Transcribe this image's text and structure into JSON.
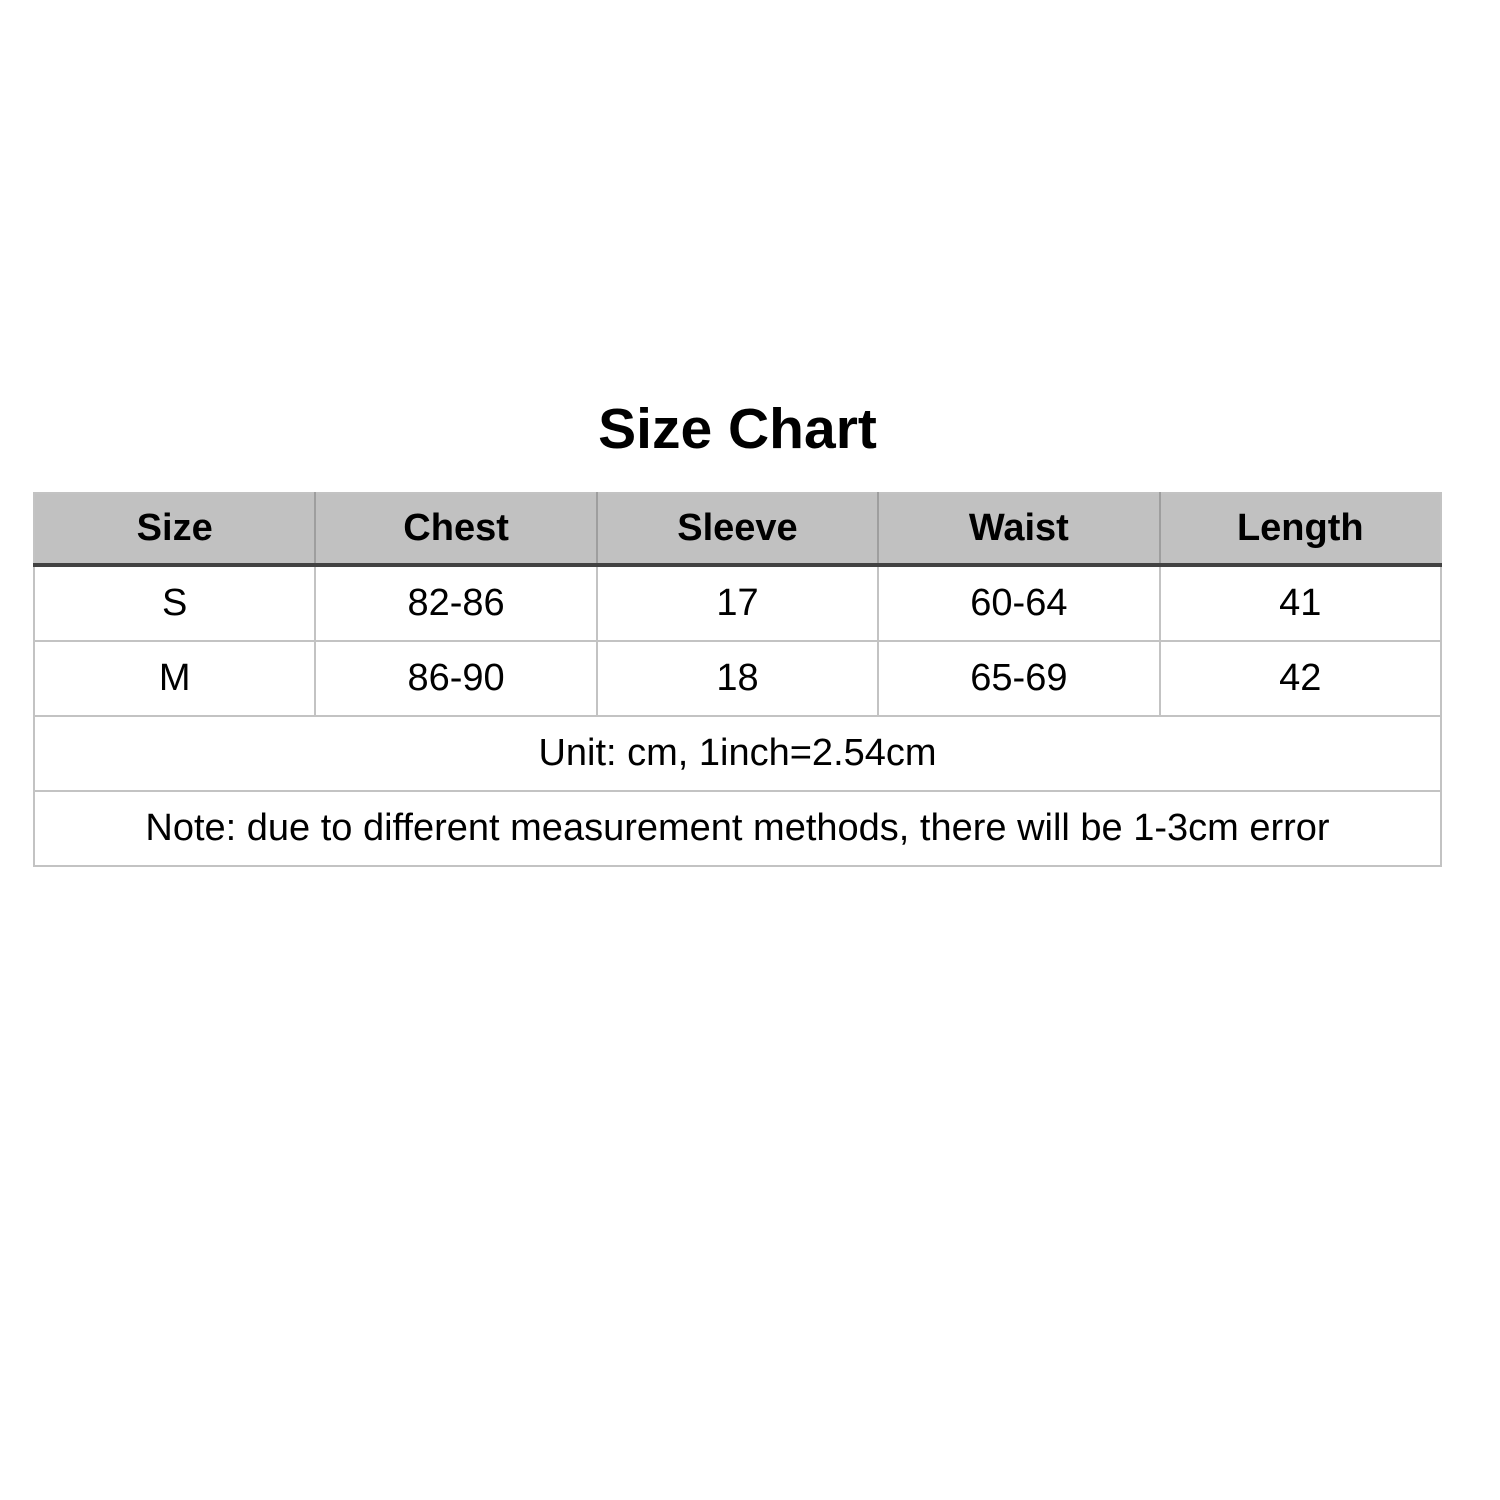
{
  "title": "Size Chart",
  "chart_data": {
    "type": "table",
    "title": "Size Chart",
    "columns": [
      "Size",
      "Chest",
      "Sleeve",
      "Waist",
      "Length"
    ],
    "rows": [
      [
        "S",
        "82-86",
        "17",
        "60-64",
        "41"
      ],
      [
        "M",
        "86-90",
        "18",
        "65-69",
        "42"
      ]
    ],
    "unit_note": "Unit: cm, 1inch=2.54cm",
    "measurement_note": "Note: due to different measurement methods, there will be 1-3cm error"
  },
  "colors": {
    "background": "#ffffff",
    "text": "#000000",
    "header_background": "#c1c1c1",
    "header_bottom_border": "#424242",
    "cell_border": "#c3c3c3"
  }
}
